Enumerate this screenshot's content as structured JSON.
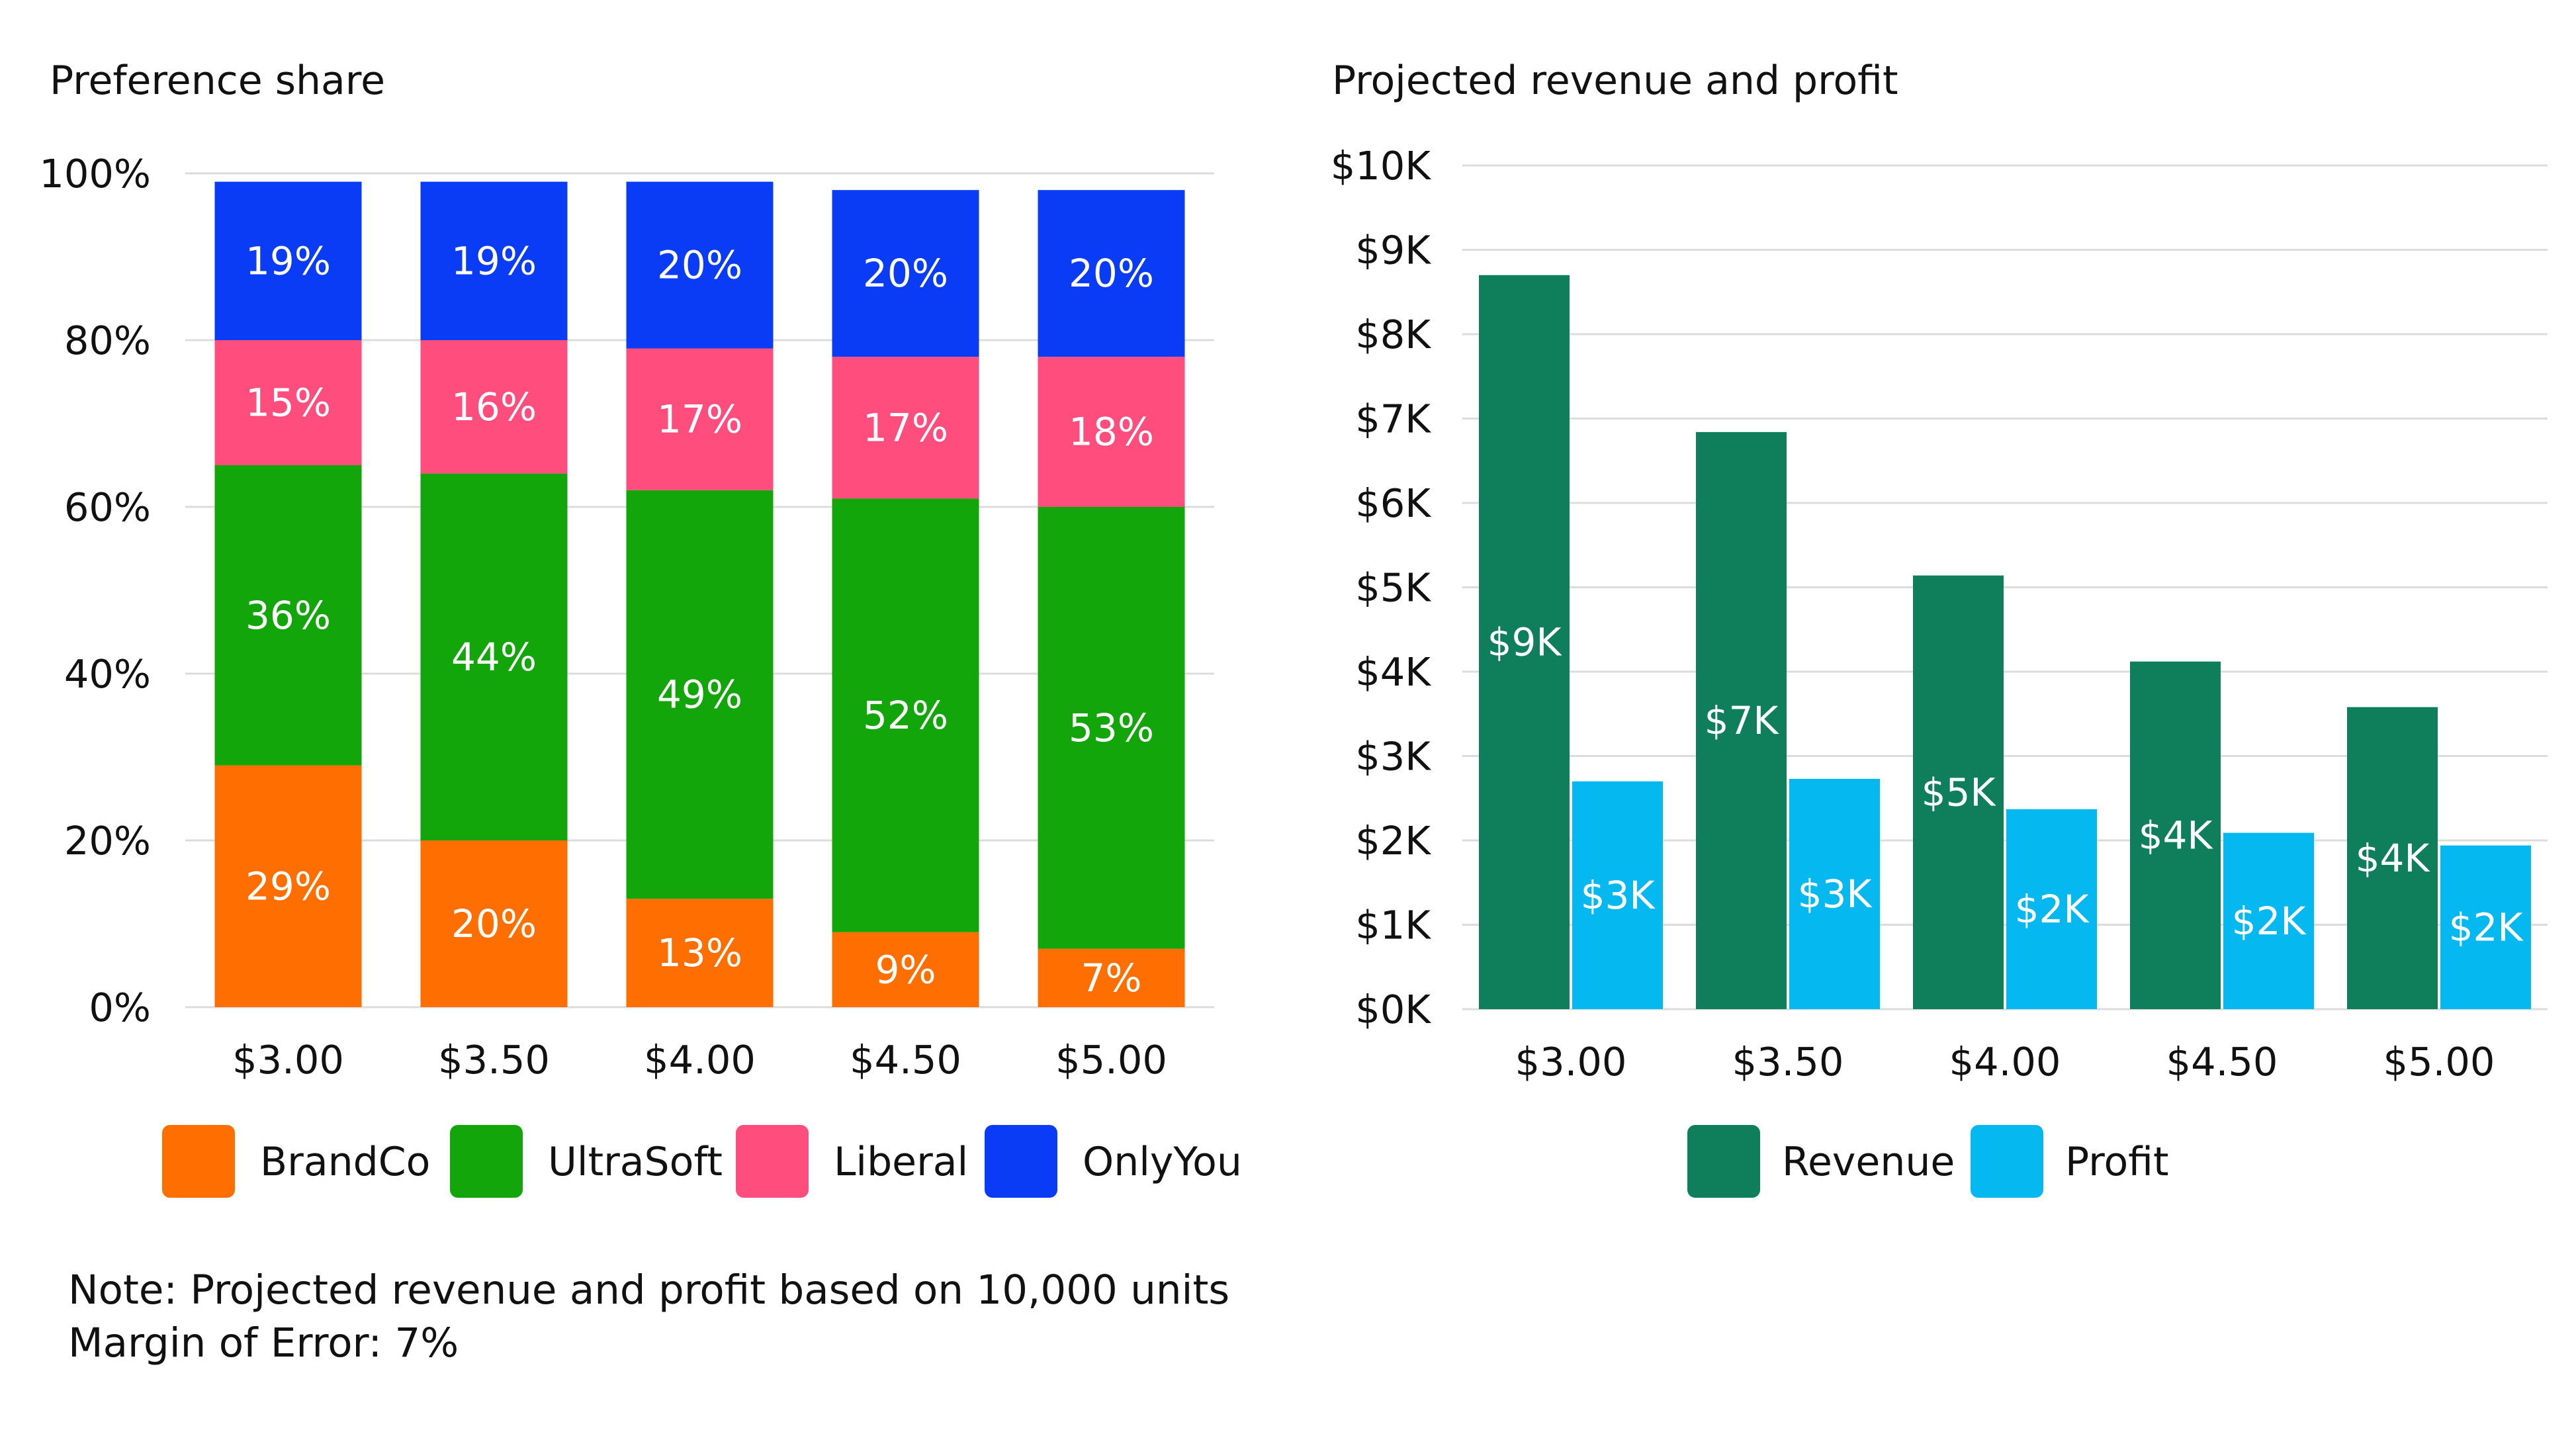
{
  "chart_data": [
    {
      "type": "bar",
      "stacked": true,
      "title": "Preference share",
      "categories": [
        "$3.00",
        "$3.50",
        "$4.00",
        "$4.50",
        "$5.00"
      ],
      "ylim": [
        0,
        100
      ],
      "yticks": [
        "0%",
        "20%",
        "40%",
        "60%",
        "80%",
        "100%"
      ],
      "xlabel": "",
      "ylabel": "",
      "grid": true,
      "legend_position": "bottom",
      "series": [
        {
          "name": "BrandCo",
          "color": "#ff6e00",
          "values": [
            29,
            20,
            13,
            9,
            7
          ],
          "labels": [
            "29%",
            "20%",
            "13%",
            "9%",
            "7%"
          ]
        },
        {
          "name": "UltraSoft",
          "color": "#13a60a",
          "values": [
            36,
            44,
            49,
            52,
            53
          ],
          "labels": [
            "36%",
            "44%",
            "49%",
            "52%",
            "53%"
          ]
        },
        {
          "name": "Liberal",
          "color": "#ff4d7d",
          "values": [
            15,
            16,
            17,
            17,
            18
          ],
          "labels": [
            "15%",
            "16%",
            "17%",
            "17%",
            "18%"
          ]
        },
        {
          "name": "OnlyYou",
          "color": "#0a3cf5",
          "values": [
            19,
            19,
            20,
            20,
            20
          ],
          "labels": [
            "19%",
            "19%",
            "20%",
            "20%",
            "20%"
          ]
        }
      ]
    },
    {
      "type": "bar",
      "stacked": false,
      "title": "Projected revenue and profit",
      "categories": [
        "$3.00",
        "$3.50",
        "$4.00",
        "$4.50",
        "$5.00"
      ],
      "ylim": [
        0,
        10
      ],
      "yticks": [
        "$0K",
        "$1K",
        "$2K",
        "$3K",
        "$4K",
        "$5K",
        "$6K",
        "$7K",
        "$8K",
        "$9K",
        "$10K"
      ],
      "xlabel": "",
      "ylabel": "",
      "grid": true,
      "legend_position": "bottom",
      "series": [
        {
          "name": "Revenue",
          "color": "#0e7f5a",
          "values": [
            8.7,
            6.84,
            5.14,
            4.12,
            3.58
          ],
          "labels": [
            "$9K",
            "$7K",
            "$5K",
            "$4K",
            "$4K"
          ]
        },
        {
          "name": "Profit",
          "color": "#06b8f0",
          "values": [
            2.7,
            2.73,
            2.37,
            2.09,
            1.94
          ],
          "labels": [
            "$3K",
            "$3K",
            "$2K",
            "$2K",
            "$2K"
          ]
        }
      ]
    }
  ],
  "notes": {
    "line1": "Note: Projected revenue and profit based on 10,000 units",
    "line2": "Margin of Error: 7%"
  }
}
